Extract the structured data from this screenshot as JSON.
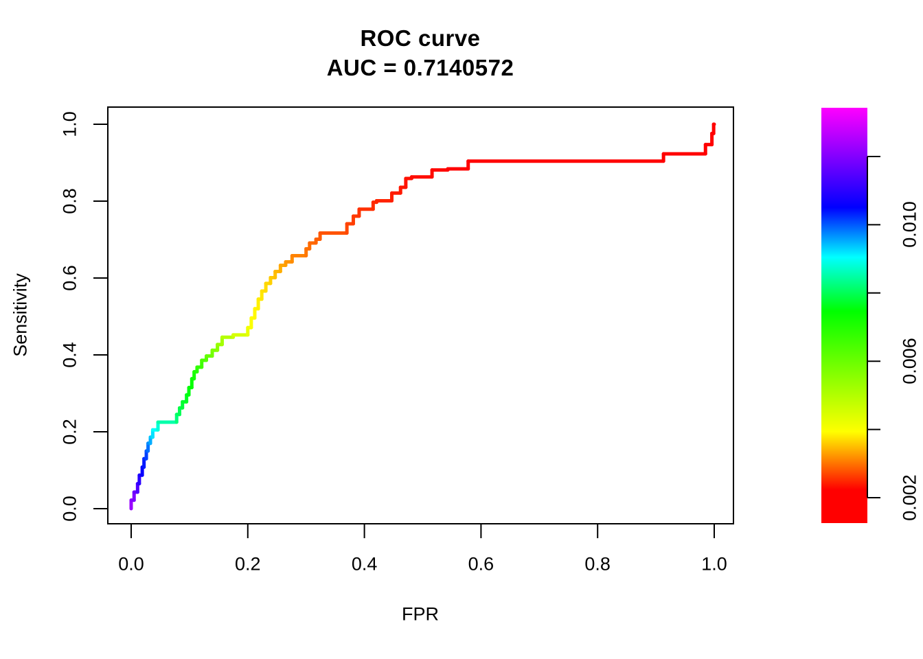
{
  "figure": {
    "background": "#FFFFFF",
    "text_color": "#000000"
  },
  "chart_data": {
    "type": "line",
    "subtype": "roc-step-curve",
    "title": "ROC curve",
    "subtitle": "AUC = 0.7140572",
    "auc": 0.7140572,
    "xlabel": "FPR",
    "ylabel": "Sensitivity",
    "xlim": [
      0.0,
      1.0
    ],
    "ylim": [
      0.0,
      1.0
    ],
    "grid": false,
    "legend_position": "colorbar-right",
    "x_ticks": [
      {
        "v": 0.0,
        "label": "0.0"
      },
      {
        "v": 0.2,
        "label": "0.2"
      },
      {
        "v": 0.4,
        "label": "0.4"
      },
      {
        "v": 0.6,
        "label": "0.6"
      },
      {
        "v": 0.8,
        "label": "0.8"
      },
      {
        "v": 1.0,
        "label": "1.0"
      }
    ],
    "y_ticks": [
      {
        "v": 0.0,
        "label": "0.0"
      },
      {
        "v": 0.2,
        "label": "0.2"
      },
      {
        "v": 0.4,
        "label": "0.4"
      },
      {
        "v": 0.6,
        "label": "0.6"
      },
      {
        "v": 0.8,
        "label": "0.8"
      },
      {
        "v": 1.0,
        "label": "1.0"
      }
    ],
    "curve": {
      "name": "ROC curve colored by decision threshold (reversed rainbow)",
      "point_format": [
        "fpr",
        "sensitivity",
        "hue_deg"
      ],
      "stroke_width": 5,
      "points": [
        [
          0.0,
          0.0,
          278
        ],
        [
          0.0,
          0.022,
          274
        ],
        [
          0.005,
          0.022,
          271
        ],
        [
          0.005,
          0.043,
          268
        ],
        [
          0.011,
          0.043,
          262
        ],
        [
          0.011,
          0.065,
          256
        ],
        [
          0.014,
          0.065,
          252
        ],
        [
          0.014,
          0.087,
          248
        ],
        [
          0.019,
          0.087,
          244
        ],
        [
          0.019,
          0.108,
          240
        ],
        [
          0.022,
          0.108,
          236
        ],
        [
          0.022,
          0.13,
          232
        ],
        [
          0.026,
          0.13,
          228
        ],
        [
          0.026,
          0.15,
          222
        ],
        [
          0.029,
          0.15,
          217
        ],
        [
          0.029,
          0.17,
          210
        ],
        [
          0.033,
          0.17,
          203
        ],
        [
          0.033,
          0.186,
          196
        ],
        [
          0.037,
          0.186,
          190
        ],
        [
          0.037,
          0.205,
          184
        ],
        [
          0.046,
          0.205,
          174
        ],
        [
          0.046,
          0.225,
          168
        ],
        [
          0.078,
          0.225,
          152
        ],
        [
          0.078,
          0.245,
          146
        ],
        [
          0.083,
          0.245,
          142
        ],
        [
          0.083,
          0.262,
          138
        ],
        [
          0.088,
          0.262,
          135
        ],
        [
          0.088,
          0.278,
          132
        ],
        [
          0.095,
          0.278,
          129
        ],
        [
          0.095,
          0.296,
          127
        ],
        [
          0.099,
          0.296,
          125
        ],
        [
          0.099,
          0.315,
          122
        ],
        [
          0.104,
          0.315,
          120
        ],
        [
          0.104,
          0.338,
          118
        ],
        [
          0.108,
          0.338,
          116
        ],
        [
          0.108,
          0.356,
          114
        ],
        [
          0.113,
          0.356,
          112
        ],
        [
          0.113,
          0.368,
          110
        ],
        [
          0.121,
          0.368,
          107
        ],
        [
          0.121,
          0.386,
          104
        ],
        [
          0.129,
          0.386,
          101
        ],
        [
          0.129,
          0.397,
          98
        ],
        [
          0.139,
          0.397,
          95
        ],
        [
          0.139,
          0.412,
          92
        ],
        [
          0.148,
          0.412,
          89
        ],
        [
          0.148,
          0.427,
          86
        ],
        [
          0.156,
          0.427,
          83
        ],
        [
          0.156,
          0.446,
          80
        ],
        [
          0.175,
          0.446,
          75
        ],
        [
          0.175,
          0.452,
          72
        ],
        [
          0.2,
          0.452,
          67
        ],
        [
          0.2,
          0.471,
          64
        ],
        [
          0.206,
          0.471,
          62
        ],
        [
          0.206,
          0.496,
          60
        ],
        [
          0.212,
          0.496,
          59
        ],
        [
          0.212,
          0.52,
          58
        ],
        [
          0.218,
          0.52,
          57
        ],
        [
          0.218,
          0.545,
          56
        ],
        [
          0.224,
          0.545,
          55
        ],
        [
          0.224,
          0.566,
          54
        ],
        [
          0.231,
          0.566,
          52
        ],
        [
          0.231,
          0.586,
          51
        ],
        [
          0.239,
          0.586,
          50
        ],
        [
          0.239,
          0.601,
          48
        ],
        [
          0.247,
          0.601,
          46
        ],
        [
          0.247,
          0.617,
          44
        ],
        [
          0.256,
          0.617,
          42
        ],
        [
          0.256,
          0.633,
          40
        ],
        [
          0.265,
          0.633,
          38
        ],
        [
          0.265,
          0.642,
          36
        ],
        [
          0.276,
          0.642,
          34
        ],
        [
          0.276,
          0.658,
          32
        ],
        [
          0.3,
          0.658,
          29
        ],
        [
          0.3,
          0.676,
          27
        ],
        [
          0.306,
          0.676,
          26
        ],
        [
          0.306,
          0.691,
          25
        ],
        [
          0.317,
          0.691,
          24
        ],
        [
          0.317,
          0.701,
          23
        ],
        [
          0.324,
          0.701,
          22
        ],
        [
          0.324,
          0.717,
          21
        ],
        [
          0.37,
          0.717,
          18
        ],
        [
          0.37,
          0.741,
          16
        ],
        [
          0.381,
          0.741,
          15
        ],
        [
          0.381,
          0.761,
          14
        ],
        [
          0.391,
          0.761,
          13
        ],
        [
          0.391,
          0.779,
          12
        ],
        [
          0.415,
          0.779,
          11
        ],
        [
          0.415,
          0.797,
          10
        ],
        [
          0.421,
          0.797,
          9
        ],
        [
          0.421,
          0.801,
          9
        ],
        [
          0.447,
          0.801,
          8
        ],
        [
          0.447,
          0.821,
          7
        ],
        [
          0.462,
          0.821,
          6
        ],
        [
          0.462,
          0.836,
          6
        ],
        [
          0.471,
          0.836,
          5
        ],
        [
          0.471,
          0.859,
          4
        ],
        [
          0.481,
          0.859,
          4
        ],
        [
          0.481,
          0.863,
          3
        ],
        [
          0.516,
          0.863,
          3
        ],
        [
          0.516,
          0.881,
          2
        ],
        [
          0.543,
          0.881,
          1
        ],
        [
          0.543,
          0.884,
          1
        ],
        [
          0.578,
          0.884,
          0
        ],
        [
          0.578,
          0.904,
          0
        ],
        [
          0.913,
          0.904,
          0
        ],
        [
          0.913,
          0.923,
          0
        ],
        [
          0.985,
          0.923,
          0
        ],
        [
          0.985,
          0.947,
          0
        ],
        [
          0.996,
          0.947,
          0
        ],
        [
          0.996,
          0.976,
          0
        ],
        [
          0.999,
          0.976,
          0
        ],
        [
          0.999,
          1.0,
          0
        ],
        [
          1.0,
          1.0,
          0
        ]
      ]
    },
    "colorbar": {
      "orientation": "vertical",
      "position": "right",
      "value_range": [
        0.001,
        0.0134
      ],
      "gradient_top_to_bottom": [
        {
          "offset": "0%",
          "color": "#FF00FF"
        },
        {
          "offset": "12%",
          "color": "#8000FF"
        },
        {
          "offset": "24%",
          "color": "#0000FF"
        },
        {
          "offset": "30%",
          "color": "#0080FF"
        },
        {
          "offset": "36%",
          "color": "#00FFFF"
        },
        {
          "offset": "49%",
          "color": "#00FF00"
        },
        {
          "offset": "78%",
          "color": "#FFFF00"
        },
        {
          "offset": "85%",
          "color": "#FF8000"
        },
        {
          "offset": "92%",
          "color": "#FF0000"
        },
        {
          "offset": "100%",
          "color": "#FF0000"
        }
      ],
      "ticks": [
        {
          "v": 0.002,
          "label": "0.002"
        },
        {
          "v": 0.004,
          "label": ""
        },
        {
          "v": 0.006,
          "label": "0.006"
        },
        {
          "v": 0.008,
          "label": ""
        },
        {
          "v": 0.01,
          "label": "0.010"
        },
        {
          "v": 0.012,
          "label": ""
        }
      ]
    }
  }
}
